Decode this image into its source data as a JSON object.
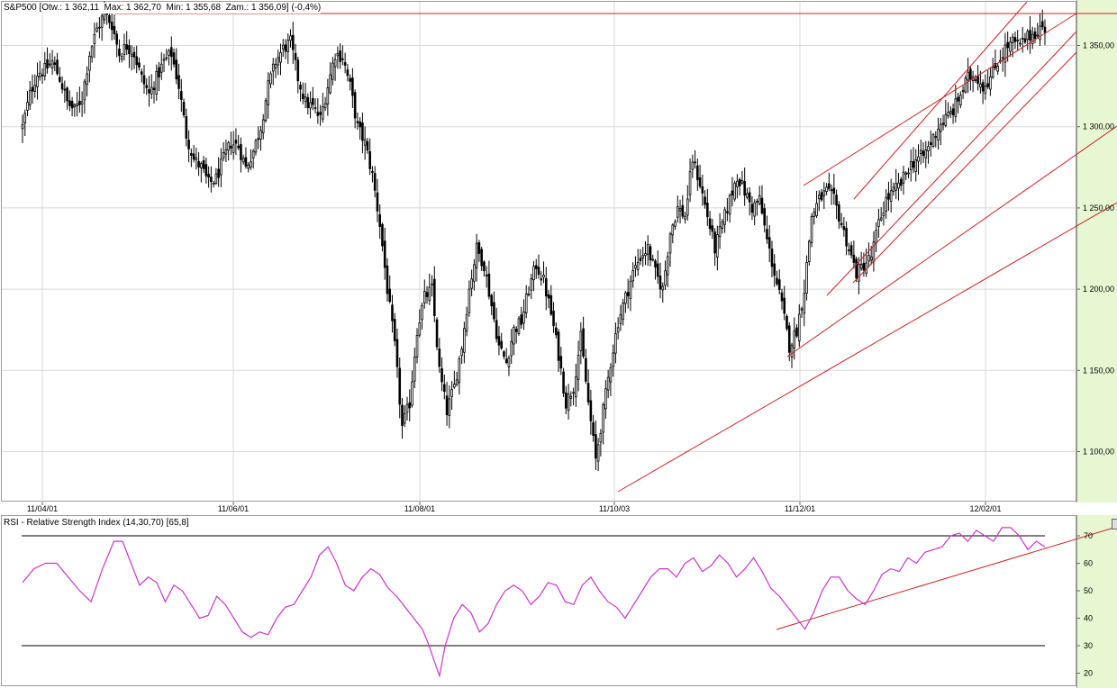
{
  "header": {
    "title": "S&P500 [Otw.: 1 362,11  Max: 1 362,70  Min: 1 355,68  Zam.: 1 356,09] (-0,4%)"
  },
  "rsi_header": {
    "title": "RSI - Relative Strength Index (14,30,70) [65,8]"
  },
  "colors": {
    "candle": "#000000",
    "trendline": "#cc2222",
    "rsi_line": "#cc33cc",
    "grid": "#d8d8d8",
    "axis_bg": "#e6f7d2",
    "rsi_threshold": "#000000"
  },
  "chart_data": [
    {
      "type": "candlestick",
      "title": "S&P500",
      "open": "1 362,11",
      "max": "1 362,70",
      "min": "1 355,68",
      "close": "1 356,09",
      "change": "(-0,4%)",
      "ylim": [
        1075,
        1380
      ],
      "y_ticks": [
        1100,
        1150,
        1200,
        1250,
        1300,
        1350
      ],
      "y_tick_labels": [
        "1 100,00",
        "1 150,00",
        "1 200,00",
        "1 250,00",
        "1 300,00",
        "1 350,00"
      ],
      "x_tick_labels": [
        "11/04/01",
        "11/06/01",
        "11/08/01",
        "11/10/03",
        "11/12/01",
        "12/02/01"
      ],
      "grid": true,
      "anchors": [
        [
          0,
          1300
        ],
        [
          3,
          1320
        ],
        [
          6,
          1333
        ],
        [
          9,
          1335
        ],
        [
          12,
          1340
        ],
        [
          15,
          1330
        ],
        [
          18,
          1315
        ],
        [
          21,
          1310
        ],
        [
          24,
          1318
        ],
        [
          27,
          1345
        ],
        [
          30,
          1360
        ],
        [
          33,
          1370
        ],
        [
          36,
          1363
        ],
        [
          39,
          1345
        ],
        [
          42,
          1350
        ],
        [
          45,
          1345
        ],
        [
          48,
          1330
        ],
        [
          51,
          1320
        ],
        [
          54,
          1330
        ],
        [
          57,
          1340
        ],
        [
          60,
          1345
        ],
        [
          63,
          1325
        ],
        [
          66,
          1295
        ],
        [
          69,
          1280
        ],
        [
          72,
          1275
        ],
        [
          75,
          1265
        ],
        [
          78,
          1268
        ],
        [
          81,
          1280
        ],
        [
          84,
          1290
        ],
        [
          87,
          1288
        ],
        [
          90,
          1275
        ],
        [
          93,
          1285
        ],
        [
          96,
          1300
        ],
        [
          99,
          1325
        ],
        [
          102,
          1340
        ],
        [
          105,
          1348
        ],
        [
          108,
          1352
        ],
        [
          111,
          1330
        ],
        [
          114,
          1315
        ],
        [
          117,
          1312
        ],
        [
          120,
          1305
        ],
        [
          123,
          1325
        ],
        [
          126,
          1345
        ],
        [
          129,
          1343
        ],
        [
          132,
          1325
        ],
        [
          135,
          1300
        ],
        [
          138,
          1290
        ],
        [
          141,
          1270
        ],
        [
          144,
          1240
        ],
        [
          147,
          1200
        ],
        [
          150,
          1165
        ],
        [
          153,
          1115
        ],
        [
          156,
          1130
        ],
        [
          159,
          1175
        ],
        [
          162,
          1195
        ],
        [
          165,
          1200
        ],
        [
          168,
          1150
        ],
        [
          171,
          1125
        ],
        [
          174,
          1140
        ],
        [
          177,
          1165
        ],
        [
          180,
          1200
        ],
        [
          183,
          1225
        ],
        [
          186,
          1215
        ],
        [
          189,
          1190
        ],
        [
          192,
          1165
        ],
        [
          195,
          1155
        ],
        [
          198,
          1175
        ],
        [
          201,
          1180
        ],
        [
          204,
          1200
        ],
        [
          207,
          1215
        ],
        [
          210,
          1205
        ],
        [
          213,
          1185
        ],
        [
          216,
          1160
        ],
        [
          219,
          1130
        ],
        [
          222,
          1140
        ],
        [
          225,
          1170
        ],
        [
          228,
          1130
        ],
        [
          231,
          1095
        ],
        [
          234,
          1125
        ],
        [
          237,
          1155
        ],
        [
          240,
          1180
        ],
        [
          243,
          1195
        ],
        [
          246,
          1210
        ],
        [
          249,
          1220
        ],
        [
          252,
          1225
        ],
        [
          255,
          1210
        ],
        [
          258,
          1200
        ],
        [
          261,
          1235
        ],
        [
          264,
          1250
        ],
        [
          267,
          1245
        ],
        [
          270,
          1280
        ],
        [
          273,
          1265
        ],
        [
          276,
          1245
        ],
        [
          279,
          1225
        ],
        [
          282,
          1240
        ],
        [
          285,
          1255
        ],
        [
          288,
          1270
        ],
        [
          291,
          1260
        ],
        [
          294,
          1250
        ],
        [
          297,
          1255
        ],
        [
          300,
          1230
        ],
        [
          303,
          1210
        ],
        [
          306,
          1190
        ],
        [
          309,
          1165
        ],
        [
          312,
          1175
        ],
        [
          315,
          1200
        ],
        [
          318,
          1245
        ],
        [
          321,
          1255
        ],
        [
          324,
          1260
        ],
        [
          327,
          1255
        ],
        [
          330,
          1240
        ],
        [
          333,
          1225
        ],
        [
          336,
          1210
        ],
        [
          339,
          1215
        ],
        [
          342,
          1220
        ],
        [
          345,
          1240
        ],
        [
          348,
          1255
        ],
        [
          351,
          1260
        ],
        [
          354,
          1265
        ],
        [
          357,
          1275
        ],
        [
          360,
          1280
        ],
        [
          363,
          1282
        ],
        [
          366,
          1290
        ],
        [
          369,
          1300
        ],
        [
          372,
          1305
        ],
        [
          375,
          1310
        ],
        [
          378,
          1320
        ],
        [
          381,
          1330
        ],
        [
          384,
          1332
        ],
        [
          387,
          1325
        ],
        [
          390,
          1330
        ],
        [
          393,
          1340
        ],
        [
          396,
          1348
        ],
        [
          399,
          1352
        ],
        [
          402,
          1350
        ],
        [
          405,
          1355
        ],
        [
          408,
          1358
        ],
        [
          411,
          1362
        ],
        [
          412,
          1356
        ]
      ]
    },
    {
      "type": "line",
      "title": "RSI - Relative Strength Index (14,30,70)",
      "last_value": "65,8",
      "ylim": [
        15,
        76
      ],
      "y_ticks": [
        20,
        30,
        40,
        50,
        60,
        70
      ],
      "y_tick_labels": [
        "20",
        "30",
        "40",
        "50",
        "60",
        "70"
      ],
      "thresholds": [
        30,
        70
      ],
      "grid": false,
      "series": [
        {
          "values": [
            [
              0,
              53
            ],
            [
              4,
              58
            ],
            [
              8,
              60
            ],
            [
              12,
              60
            ],
            [
              16,
              55
            ],
            [
              20,
              50
            ],
            [
              24,
              46
            ],
            [
              28,
              58
            ],
            [
              32,
              68
            ],
            [
              35,
              68
            ],
            [
              38,
              60
            ],
            [
              41,
              52
            ],
            [
              44,
              55
            ],
            [
              47,
              53
            ],
            [
              50,
              46
            ],
            [
              53,
              52
            ],
            [
              56,
              50
            ],
            [
              59,
              45
            ],
            [
              62,
              40
            ],
            [
              65,
              41
            ],
            [
              68,
              48
            ],
            [
              71,
              45
            ],
            [
              74,
              40
            ],
            [
              77,
              35
            ],
            [
              80,
              33
            ],
            [
              83,
              35
            ],
            [
              86,
              34
            ],
            [
              89,
              40
            ],
            [
              92,
              44
            ],
            [
              95,
              45
            ],
            [
              98,
              50
            ],
            [
              101,
              55
            ],
            [
              104,
              63
            ],
            [
              107,
              66
            ],
            [
              110,
              60
            ],
            [
              113,
              52
            ],
            [
              116,
              50
            ],
            [
              119,
              55
            ],
            [
              122,
              58
            ],
            [
              125,
              56
            ],
            [
              128,
              51
            ],
            [
              131,
              48
            ],
            [
              134,
              44
            ],
            [
              137,
              40
            ],
            [
              140,
              36
            ],
            [
              142,
              31
            ],
            [
              144,
              25
            ],
            [
              146,
              19
            ],
            [
              148,
              30
            ],
            [
              151,
              40
            ],
            [
              154,
              45
            ],
            [
              157,
              42
            ],
            [
              160,
              35
            ],
            [
              163,
              38
            ],
            [
              166,
              45
            ],
            [
              169,
              50
            ],
            [
              172,
              52
            ],
            [
              175,
              50
            ],
            [
              178,
              45
            ],
            [
              181,
              48
            ],
            [
              184,
              53
            ],
            [
              187,
              52
            ],
            [
              190,
              46
            ],
            [
              193,
              45
            ],
            [
              196,
              52
            ],
            [
              199,
              55
            ],
            [
              202,
              50
            ],
            [
              205,
              46
            ],
            [
              208,
              44
            ],
            [
              211,
              40
            ],
            [
              214,
              45
            ],
            [
              217,
              50
            ],
            [
              220,
              55
            ],
            [
              223,
              58
            ],
            [
              226,
              58
            ],
            [
              229,
              55
            ],
            [
              232,
              60
            ],
            [
              235,
              62
            ],
            [
              238,
              57
            ],
            [
              241,
              59
            ],
            [
              244,
              63
            ],
            [
              247,
              60
            ],
            [
              250,
              55
            ],
            [
              253,
              58
            ],
            [
              256,
              62
            ],
            [
              259,
              57
            ],
            [
              262,
              51
            ],
            [
              265,
              48
            ],
            [
              268,
              44
            ],
            [
              271,
              40
            ],
            [
              274,
              36
            ],
            [
              277,
              42
            ],
            [
              280,
              50
            ],
            [
              283,
              55
            ],
            [
              286,
              55
            ],
            [
              289,
              50
            ],
            [
              292,
              47
            ],
            [
              295,
              45
            ],
            [
              298,
              50
            ],
            [
              301,
              56
            ],
            [
              304,
              58
            ],
            [
              307,
              57
            ],
            [
              310,
              62
            ],
            [
              313,
              60
            ],
            [
              316,
              64
            ],
            [
              319,
              65
            ],
            [
              322,
              66
            ],
            [
              325,
              70
            ],
            [
              328,
              71
            ],
            [
              331,
              68
            ],
            [
              334,
              72
            ],
            [
              337,
              70
            ],
            [
              340,
              68
            ],
            [
              343,
              73
            ],
            [
              346,
              73
            ],
            [
              349,
              70
            ],
            [
              352,
              65
            ],
            [
              355,
              68
            ],
            [
              358,
              66
            ]
          ]
        }
      ]
    }
  ]
}
